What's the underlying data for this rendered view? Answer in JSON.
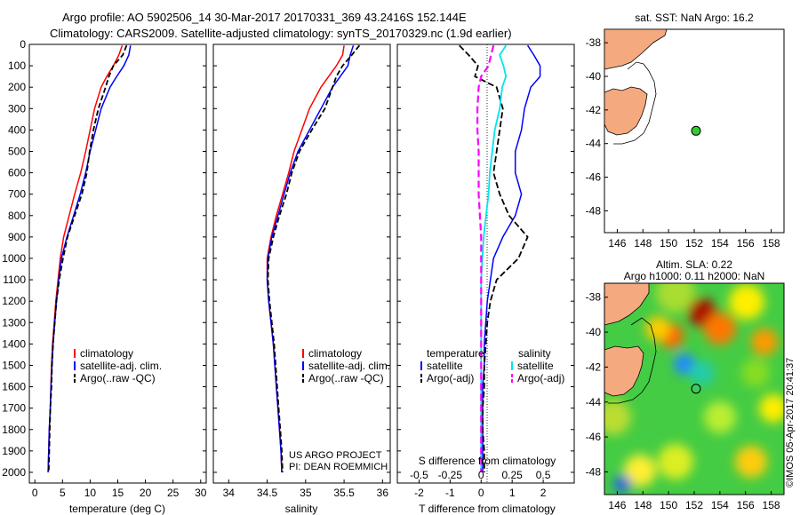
{
  "header": {
    "line1": "Argo profile: AO 5902506_14 30-Mar-2017 20170331_369 43.2416S 152.144E",
    "line2": "Climatology: CARS2009. Satellite-adjusted climatology: synTS_20170329.nc (1.9d earlier)"
  },
  "colors": {
    "climatology": "#ff0000",
    "satellite": "#0000ff",
    "argo": "#000000",
    "temp_diff_argo": "#ff00ff",
    "sal_satellite": "#00e5ee",
    "land": "#f5a97f",
    "float_marker": "#33cc33"
  },
  "chart_data": [
    {
      "type": "line",
      "id": "temperature_profile",
      "xlabel": "temperature (deg C)",
      "xlim": [
        -1,
        31
      ],
      "xticks": [
        "0",
        "5",
        "10",
        "15",
        "20",
        "25",
        "30"
      ],
      "ylim": [
        0,
        2050
      ],
      "yticks": [
        "0",
        "100",
        "200",
        "300",
        "400",
        "500",
        "600",
        "700",
        "800",
        "900",
        "1000",
        "1100",
        "1200",
        "1300",
        "1400",
        "1500",
        "1600",
        "1700",
        "1800",
        "1900",
        "2000"
      ],
      "legend": [
        "climatology",
        "satellite-adj. clim.",
        "Argo(..raw -QC)"
      ],
      "depth": [
        5,
        50,
        100,
        150,
        200,
        300,
        400,
        500,
        600,
        700,
        800,
        900,
        1000,
        1100,
        1200,
        1300,
        1400,
        1500,
        1600,
        1700,
        1800,
        1900,
        2000
      ],
      "series": [
        {
          "name": "climatology",
          "values": [
            15.8,
            15.2,
            14.2,
            13.0,
            12.0,
            10.8,
            10.0,
            9.2,
            8.3,
            7.2,
            6.2,
            5.2,
            4.6,
            4.2,
            3.8,
            3.5,
            3.2,
            3.0,
            2.9,
            2.8,
            2.6,
            2.5,
            2.4
          ]
        },
        {
          "name": "satellite-adj. clim.",
          "values": [
            17.3,
            17.0,
            16.1,
            14.8,
            13.6,
            12.0,
            11.0,
            10.0,
            9.2,
            8.2,
            7.0,
            5.8,
            4.8,
            4.3,
            3.9,
            3.6,
            3.3,
            3.1,
            2.9,
            2.8,
            2.6,
            2.5,
            2.4
          ]
        },
        {
          "name": "Argo(..raw -QC)",
          "values": [
            16.6,
            15.9,
            14.2,
            13.4,
            12.8,
            11.5,
            10.6,
            9.9,
            9.4,
            8.5,
            7.2,
            5.9,
            5.1,
            4.4,
            3.9,
            3.6,
            3.3,
            3.1,
            3.0,
            2.8,
            2.7,
            2.6,
            2.5
          ]
        }
      ]
    },
    {
      "type": "line",
      "id": "salinity_profile",
      "xlabel": "salinity",
      "xlim": [
        33.8,
        36.1
      ],
      "xticks": [
        "34",
        "34.5",
        "35",
        "35.5",
        "36"
      ],
      "ylim": [
        0,
        2050
      ],
      "legend": [
        "climatology",
        "satellite-adj. clim.",
        "Argo(..raw -QC)"
      ],
      "annotation": [
        "US ARGO PROJECT",
        "PI: DEAN ROEMMICH"
      ],
      "depth": [
        5,
        50,
        100,
        150,
        200,
        300,
        400,
        500,
        600,
        700,
        800,
        900,
        1000,
        1100,
        1200,
        1300,
        1400,
        1500,
        1600,
        1700,
        1800,
        1900,
        2000
      ],
      "series": [
        {
          "name": "climatology",
          "values": [
            35.5,
            35.48,
            35.4,
            35.3,
            35.2,
            35.05,
            34.95,
            34.85,
            34.78,
            34.7,
            34.62,
            34.55,
            34.5,
            34.5,
            34.52,
            34.55,
            34.58,
            34.6,
            34.62,
            34.64,
            34.66,
            34.68,
            34.69
          ]
        },
        {
          "name": "satellite-adj. clim.",
          "values": [
            35.62,
            35.58,
            35.55,
            35.45,
            35.35,
            35.2,
            35.05,
            34.9,
            34.8,
            34.72,
            34.64,
            34.56,
            34.51,
            34.5,
            34.52,
            34.55,
            34.58,
            34.6,
            34.62,
            34.64,
            34.66,
            34.68,
            34.69
          ]
        },
        {
          "name": "Argo(..raw -QC)",
          "values": [
            35.7,
            35.6,
            35.48,
            35.4,
            35.35,
            35.25,
            35.08,
            34.92,
            34.82,
            34.75,
            34.66,
            34.58,
            34.52,
            34.51,
            34.53,
            34.56,
            34.59,
            34.61,
            34.63,
            34.65,
            34.67,
            34.69,
            34.7
          ]
        }
      ]
    },
    {
      "type": "line",
      "id": "difference_profile",
      "xlabel": "T difference from climatology",
      "xlabel2": "S difference from climatology",
      "xlim": [
        -2.7,
        3.0
      ],
      "xticks": [
        "-2",
        "-1",
        "0",
        "1",
        "2"
      ],
      "xticks_s": [
        "-0.5",
        "-0.25",
        "0",
        "0.25",
        "0.5"
      ],
      "ylim": [
        0,
        2050
      ],
      "legend_headers": [
        "temperature",
        "salinity"
      ],
      "legend": [
        "satellite",
        "Argo(-adj)",
        "satellite",
        "Argo(-adj)"
      ],
      "depth": [
        5,
        50,
        100,
        150,
        200,
        300,
        400,
        500,
        600,
        700,
        800,
        900,
        1000,
        1100,
        1200,
        1300,
        1400,
        1500,
        1600,
        1700,
        1800,
        1900,
        2000
      ],
      "series": [
        {
          "name": "temperature satellite",
          "values": [
            1.5,
            1.7,
            1.9,
            1.9,
            1.6,
            1.4,
            1.3,
            1.1,
            1.1,
            1.3,
            1.1,
            0.7,
            0.4,
            0.3,
            0.2,
            0.15,
            0.1,
            0.1,
            0.05,
            0.05,
            0.05,
            0.05,
            0.05
          ]
        },
        {
          "name": "temperature Argo(-adj)",
          "values": [
            -0.7,
            -0.4,
            -0.1,
            -0.2,
            0.5,
            0.7,
            0.6,
            0.5,
            0.4,
            0.6,
            0.9,
            1.5,
            1.2,
            0.5,
            0.3,
            0.2,
            0.15,
            0.1,
            0.1,
            0.05,
            0.05,
            0.1,
            0.1
          ]
        },
        {
          "name": "salinity satellite",
          "values": [
            0.2,
            0.15,
            0.18,
            0.2,
            0.17,
            0.15,
            0.11,
            0.09,
            0.07,
            0.06,
            0.04,
            0.02,
            0.01,
            0.0,
            0.0,
            0.0,
            0.0,
            0.0,
            0.0,
            0.0,
            0.0,
            0.0,
            0.0
          ]
        },
        {
          "name": "salinity Argo(-adj)",
          "values": [
            0.1,
            0.08,
            0.06,
            0.0,
            -0.02,
            -0.03,
            -0.03,
            -0.02,
            -0.02,
            -0.02,
            -0.01,
            0.0,
            0.0,
            0.0,
            0.0,
            0.0,
            0.0,
            0.0,
            0.0,
            0.0,
            0.0,
            0.0,
            0.0
          ]
        }
      ]
    }
  ],
  "maps": {
    "sst": {
      "title": "sat. SST: NaN Argo: 16.2",
      "xticks": [
        "146",
        "148",
        "150",
        "152",
        "154",
        "156",
        "158"
      ],
      "yticks": [
        "-38",
        "-40",
        "-42",
        "-44",
        "-46",
        "-48"
      ],
      "float_lon": 152.14,
      "float_lat": -43.24
    },
    "sla": {
      "title1": "Altim. SLA: 0.22",
      "title2": "Argo h1000: 0.11 h2000: NaN",
      "xticks": [
        "146",
        "148",
        "150",
        "152",
        "154",
        "156",
        "158"
      ],
      "yticks": [
        "-38",
        "-40",
        "-42",
        "-44",
        "-46",
        "-48"
      ],
      "float_lon": 152.14,
      "float_lat": -43.24
    },
    "credit": "©IMOS 05-Apr-2017 20:41:37"
  }
}
